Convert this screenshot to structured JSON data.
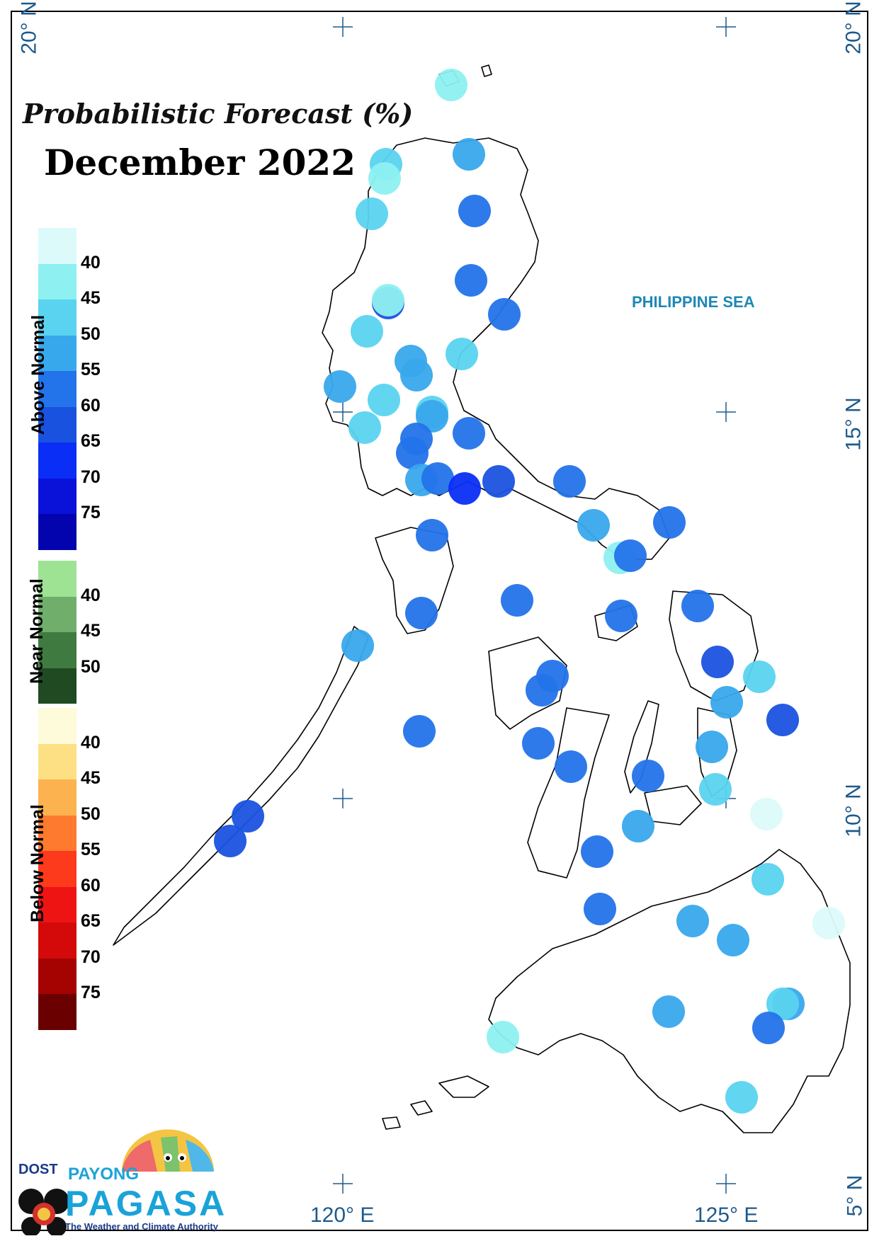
{
  "title": {
    "line1": "Probabilistic Forecast (%)",
    "line2": "December 2022"
  },
  "sea_label": "PHILIPPINE SEA",
  "axes": {
    "lat_labels": {
      "top_left": "20° N",
      "top_right": "20° N",
      "mid_right": "15° N",
      "lower_right": "10° N",
      "bottom_right": "5° N"
    },
    "lon_labels": {
      "left": "120° E",
      "right": "125° E"
    }
  },
  "legend": {
    "above_normal": {
      "title": "Above Normal",
      "labels": [
        "40",
        "45",
        "50",
        "55",
        "60",
        "65",
        "70",
        "75"
      ],
      "colors": [
        "#dcfafa",
        "#8ef0f0",
        "#5ad3f0",
        "#38a8ec",
        "#2373ea",
        "#1a52e0",
        "#0a2ef5",
        "#0a12d9",
        "#0404ae"
      ]
    },
    "near_normal": {
      "title": "Near Normal",
      "labels": [
        "40",
        "45",
        "50"
      ],
      "colors": [
        "#9ee394",
        "#6fae6b",
        "#3f7b40",
        "#1f4a22"
      ]
    },
    "below_normal": {
      "title": "Below Normal",
      "labels": [
        "40",
        "45",
        "50",
        "55",
        "60",
        "65",
        "70",
        "75"
      ],
      "colors": [
        "#fdfbd9",
        "#fde084",
        "#fdb250",
        "#fd7a2e",
        "#fd3a1c",
        "#ef1414",
        "#d40a0a",
        "#a50202",
        "#6a0000"
      ]
    }
  },
  "logo": {
    "agency": "DOST",
    "brand_top": "PAYONG",
    "brand_main": "PAGASA",
    "tagline": "The Weather and Climate Authority"
  },
  "map_colors": {
    "very_light": "#dcfafa",
    "light": "#8ef0f0",
    "cyan": "#5ad3f0",
    "medium": "#38a8ec",
    "blue": "#2373ea",
    "dark": "#1a52e0",
    "darker": "#0a2ef5"
  }
}
